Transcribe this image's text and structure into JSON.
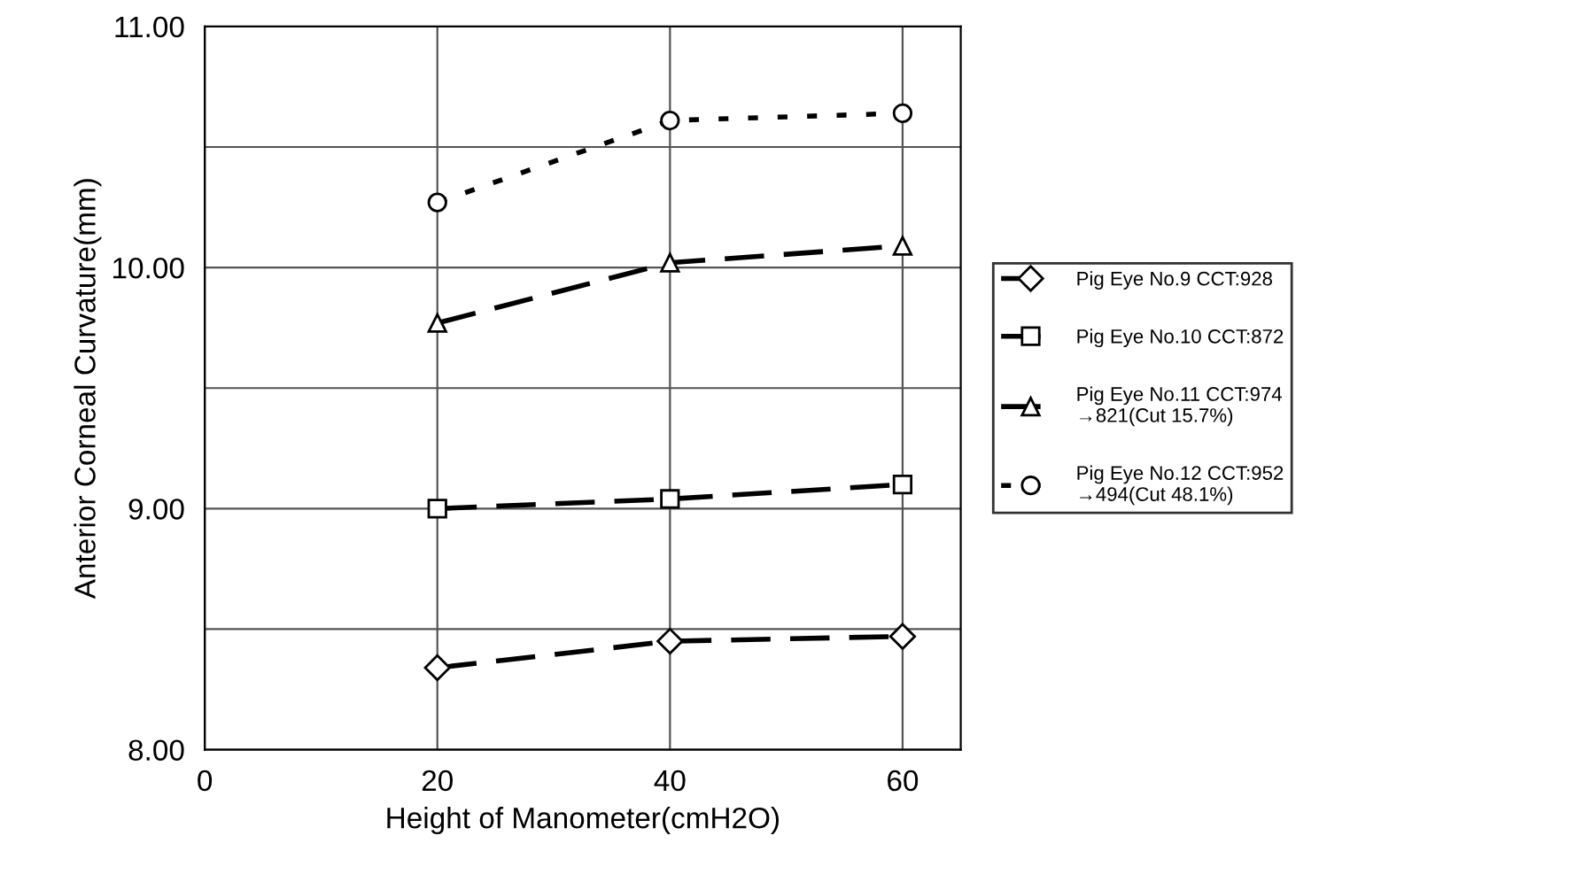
{
  "chart_data": {
    "type": "line",
    "xlabel": "Height of Manometer(cmH2O)",
    "ylabel": "Anterior Corneal Curvature(mm)",
    "x": [
      20,
      40,
      60
    ],
    "series": [
      {
        "name": "Pig Eye No.9 CCT:928",
        "color": "#000000",
        "marker": "diamond",
        "line_style": "dashed",
        "values": [
          8.34,
          8.45,
          8.47
        ]
      },
      {
        "name": "Pig Eye No.10 CCT:872",
        "color": "#000000",
        "marker": "square",
        "line_style": "dashed",
        "values": [
          9.0,
          9.04,
          9.1
        ]
      },
      {
        "name": "Pig Eye No.11 CCT:974\n→821(Cut 15.7%)",
        "color": "#000000",
        "marker": "triangle",
        "line_style": "dashed",
        "values": [
          9.77,
          10.02,
          10.09
        ]
      },
      {
        "name": "Pig Eye No.12 CCT:952\n→494(Cut 48.1%)",
        "color": "#000000",
        "marker": "circle",
        "line_style": "dotted",
        "values": [
          10.27,
          10.61,
          10.64
        ]
      }
    ],
    "xlim": [
      0,
      65
    ],
    "xticks": [
      0,
      20,
      40,
      60
    ],
    "ylim": [
      8,
      11
    ],
    "yticks": [
      {
        "value": 8,
        "label": "8.00"
      },
      {
        "value": 8.5,
        "label": null
      },
      {
        "value": 9,
        "label": "9.00"
      },
      {
        "value": 9.5,
        "label": null
      },
      {
        "value": 10,
        "label": "10.00"
      },
      {
        "value": 10.5,
        "label": null
      },
      {
        "value": 11,
        "label": "11.00"
      }
    ],
    "grid": true,
    "legend": "right"
  }
}
